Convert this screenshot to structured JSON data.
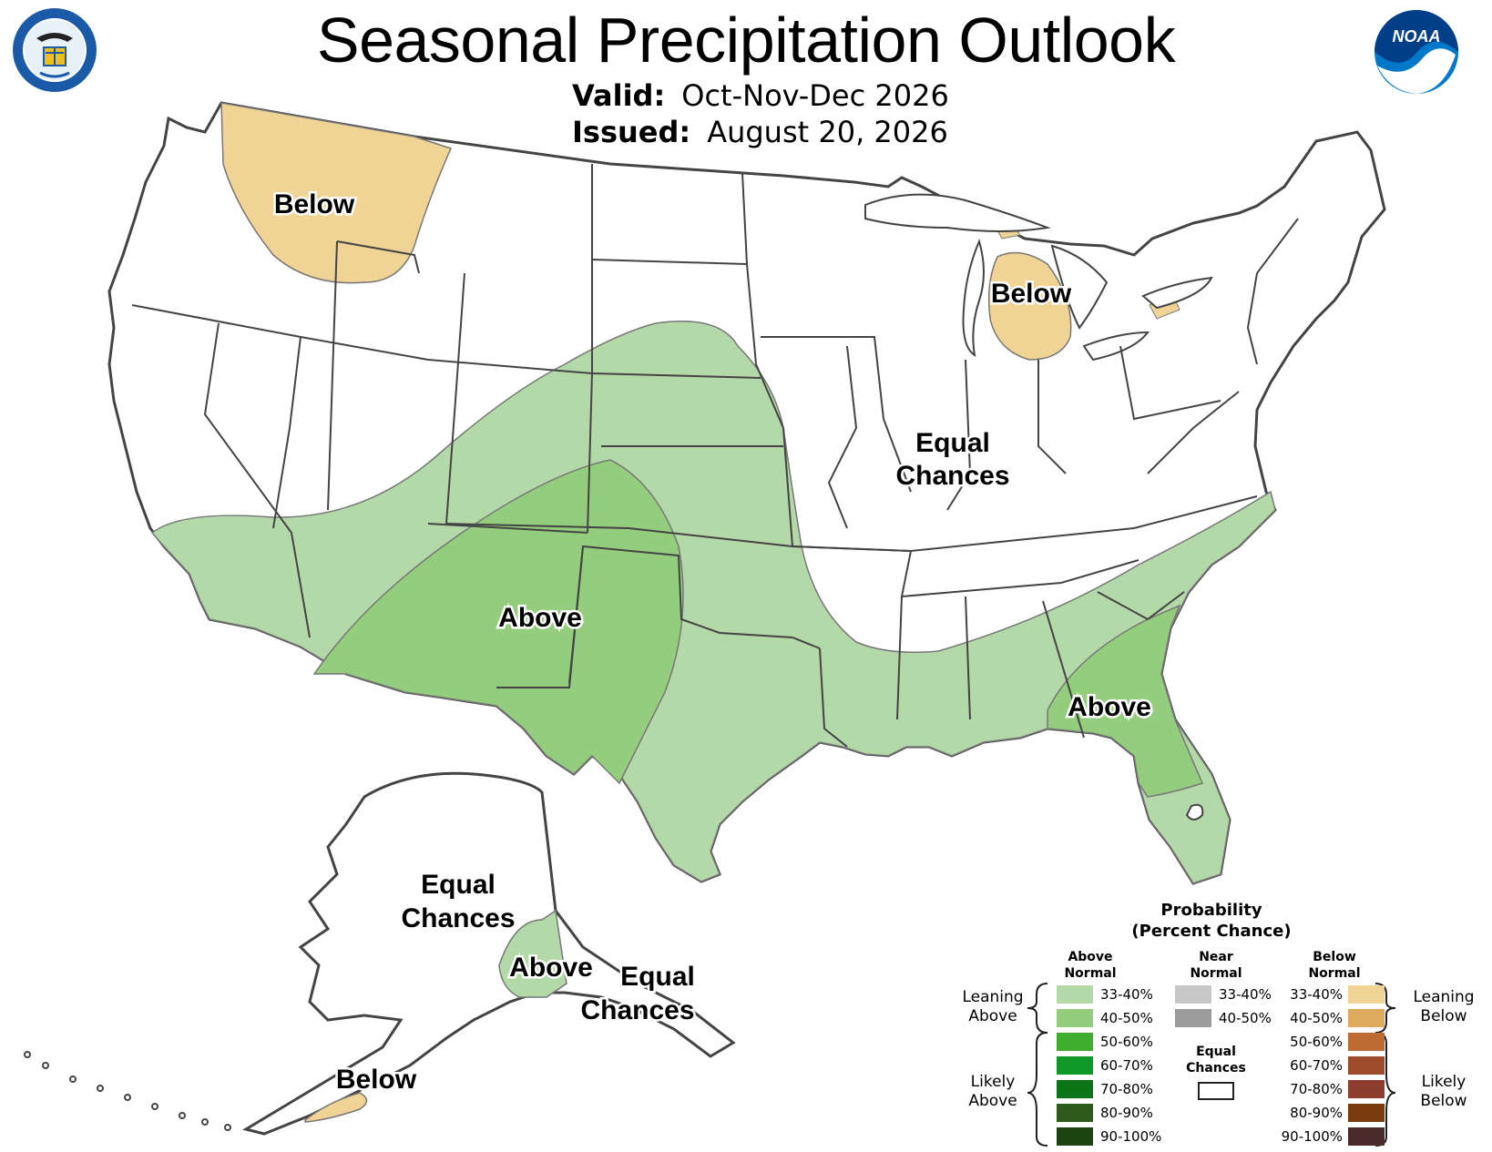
{
  "title": "Seasonal Precipitation Outlook",
  "valid_label": "Valid:",
  "valid_value": "Oct-Nov-Dec 2026",
  "issued_label": "Issued:",
  "issued_value": "August 20, 2026",
  "logos": {
    "left": "department-of-commerce-seal",
    "left_text": [
      "DEPARTMENT OF COMMERCE",
      "UNITED STATES OF AMERICA"
    ],
    "right": "noaa-logo",
    "right_text": "NOAA"
  },
  "map_labels": {
    "nw_below": "Below",
    "mi_below": "Below",
    "central_ec_1": "Equal",
    "central_ec_2": "Chances",
    "sw_above": "Above",
    "se_above": "Above",
    "ak_ec_1": "Equal",
    "ak_ec_2": "Chances",
    "ak_above": "Above",
    "ak_se_ec_1": "Equal",
    "ak_se_ec_2": "Chances",
    "ak_below": "Below"
  },
  "legend": {
    "title_1": "Probability",
    "title_2": "(Percent Chance)",
    "col_above_1": "Above",
    "col_above_2": "Normal",
    "col_near_1": "Near",
    "col_near_2": "Normal",
    "col_below_1": "Below",
    "col_below_2": "Normal",
    "leaning_above_1": "Leaning",
    "leaning_above_2": "Above",
    "likely_above_1": "Likely",
    "likely_above_2": "Above",
    "leaning_below_1": "Leaning",
    "leaning_below_2": "Below",
    "likely_below_1": "Likely",
    "likely_below_2": "Below",
    "equal_1": "Equal",
    "equal_2": "Chances",
    "above": [
      {
        "range": "33-40%",
        "color": "#b3d9a8"
      },
      {
        "range": "40-50%",
        "color": "#93cd7d"
      },
      {
        "range": "50-60%",
        "color": "#3fae2c"
      },
      {
        "range": "60-70%",
        "color": "#0f9a28"
      },
      {
        "range": "70-80%",
        "color": "#0a7416"
      },
      {
        "range": "80-90%",
        "color": "#2d5b1a"
      },
      {
        "range": "90-100%",
        "color": "#1d4310"
      }
    ],
    "near": [
      {
        "range": "33-40%",
        "color": "#c7c7c7"
      },
      {
        "range": "40-50%",
        "color": "#9b9b9b"
      }
    ],
    "below": [
      {
        "range": "33-40%",
        "color": "#f0d495"
      },
      {
        "range": "40-50%",
        "color": "#dcaa5c"
      },
      {
        "range": "50-60%",
        "color": "#bd6b33"
      },
      {
        "range": "60-70%",
        "color": "#9d4b2c"
      },
      {
        "range": "70-80%",
        "color": "#8d3d2e"
      },
      {
        "range": "80-90%",
        "color": "#7a3c0c"
      },
      {
        "range": "90-100%",
        "color": "#4b2a2a"
      }
    ],
    "equal_color": "#ffffff"
  }
}
